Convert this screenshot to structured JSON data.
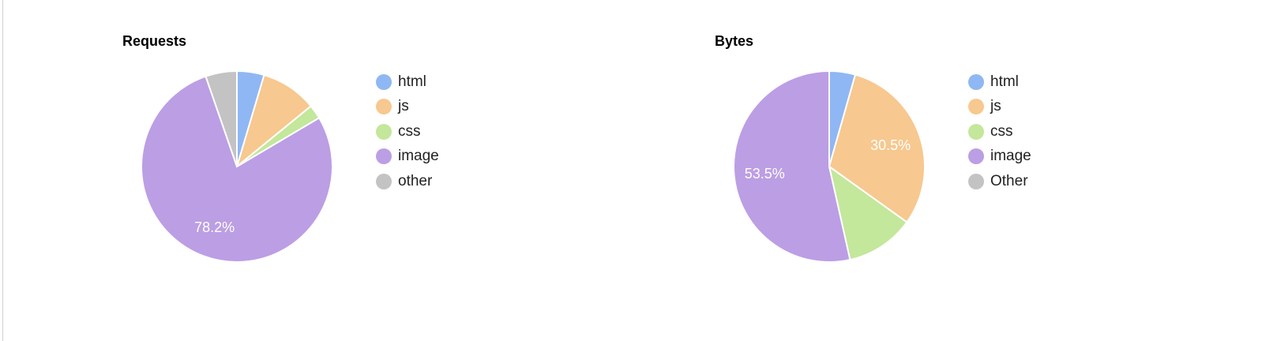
{
  "chart_data": [
    {
      "type": "pie",
      "title": "Requests",
      "legend_position": "right",
      "slices": [
        {
          "label": "html",
          "value": 4.6,
          "color": "#8fb7f4",
          "data_label": ""
        },
        {
          "label": "js",
          "value": 9.5,
          "color": "#f7c88f",
          "data_label": ""
        },
        {
          "label": "css",
          "value": 2.4,
          "color": "#c3e79b",
          "data_label": ""
        },
        {
          "label": "image",
          "value": 78.2,
          "color": "#bc9ee4",
          "data_label": "78.2%"
        },
        {
          "label": "other",
          "value": 5.3,
          "color": "#c3c3c3",
          "data_label": ""
        }
      ]
    },
    {
      "type": "pie",
      "title": "Bytes",
      "legend_position": "right",
      "slices": [
        {
          "label": "html",
          "value": 4.4,
          "color": "#8fb7f4",
          "data_label": ""
        },
        {
          "label": "js",
          "value": 30.5,
          "color": "#f7c88f",
          "data_label": "30.5%"
        },
        {
          "label": "css",
          "value": 11.6,
          "color": "#c3e79b",
          "data_label": ""
        },
        {
          "label": "image",
          "value": 53.5,
          "color": "#bc9ee4",
          "data_label": "53.5%"
        },
        {
          "label": "Other",
          "value": 0.0,
          "color": "#c3c3c3",
          "data_label": ""
        }
      ]
    }
  ]
}
